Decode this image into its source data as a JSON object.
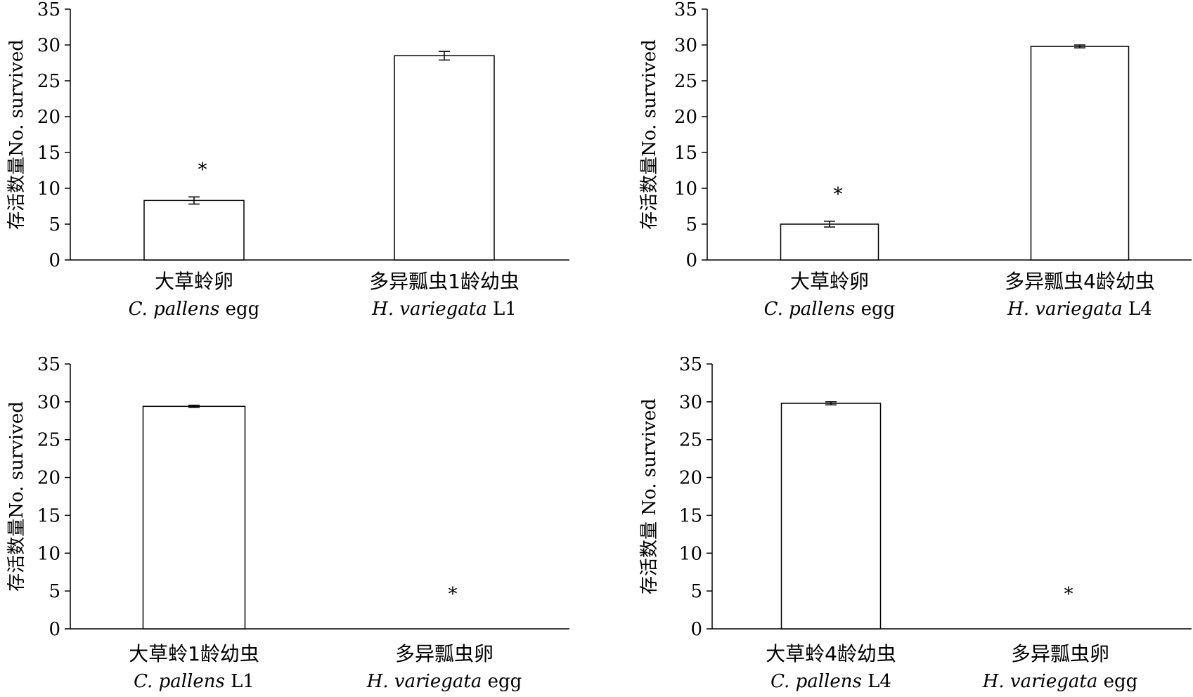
{
  "chart_data": [
    {
      "type": "bar",
      "ylabel": "存活数量No. survived",
      "ylim": [
        0,
        35
      ],
      "yticks": [
        0,
        5,
        10,
        15,
        20,
        25,
        30,
        35
      ],
      "categories": [
        {
          "cn": "大草蛉卵",
          "sci": "C. pallens",
          "suffix": " egg"
        },
        {
          "cn": "多异瓢虫1龄幼虫",
          "sci": "H. variegata",
          "suffix": " L1"
        }
      ],
      "values": [
        8.3,
        28.5
      ],
      "errors": [
        0.5,
        0.6
      ],
      "significance": [
        "*",
        ""
      ]
    },
    {
      "type": "bar",
      "ylabel": "存活数量No. survived",
      "ylim": [
        0,
        35
      ],
      "yticks": [
        0,
        5,
        10,
        15,
        20,
        25,
        30,
        35
      ],
      "categories": [
        {
          "cn": "大草蛉卵",
          "sci": "C. pallens",
          "suffix": " egg"
        },
        {
          "cn": "多异瓢虫4龄幼虫",
          "sci": "H. variegata",
          "suffix": " L4"
        }
      ],
      "values": [
        5.0,
        29.8
      ],
      "errors": [
        0.4,
        0.2
      ],
      "significance": [
        "*",
        ""
      ]
    },
    {
      "type": "bar",
      "ylabel": "存活数量No. survived",
      "ylim": [
        0,
        35
      ],
      "yticks": [
        0,
        5,
        10,
        15,
        20,
        25,
        30,
        35
      ],
      "categories": [
        {
          "cn": "大草蛉1龄幼虫",
          "sci": "C. pallens",
          "suffix": " L1"
        },
        {
          "cn": "多异瓢虫卵",
          "sci": "H. variegata",
          "suffix": " egg"
        }
      ],
      "values": [
        29.4,
        0
      ],
      "errors": [
        0.15,
        0
      ],
      "significance": [
        "",
        "*"
      ]
    },
    {
      "type": "bar",
      "ylabel": "存活数量    No. survived",
      "ylim": [
        0,
        35
      ],
      "yticks": [
        0,
        5,
        10,
        15,
        20,
        25,
        30,
        35
      ],
      "categories": [
        {
          "cn": "大草蛉4龄幼虫",
          "sci": "C. pallens",
          "suffix": " L4"
        },
        {
          "cn": "多异瓢虫卵",
          "sci": "H. variegata",
          "suffix": " egg"
        }
      ],
      "values": [
        29.8,
        0
      ],
      "errors": [
        0.2,
        0
      ],
      "significance": [
        "",
        "*"
      ]
    }
  ]
}
